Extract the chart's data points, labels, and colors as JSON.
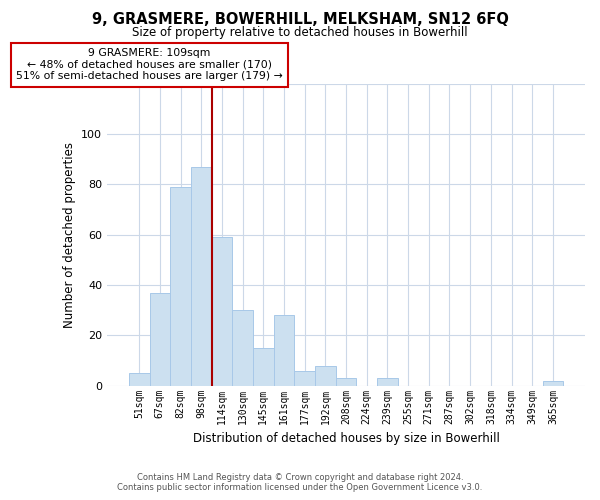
{
  "title": "9, GRASMERE, BOWERHILL, MELKSHAM, SN12 6FQ",
  "subtitle": "Size of property relative to detached houses in Bowerhill",
  "xlabel": "Distribution of detached houses by size in Bowerhill",
  "ylabel": "Number of detached properties",
  "bar_labels": [
    "51sqm",
    "67sqm",
    "82sqm",
    "98sqm",
    "114sqm",
    "130sqm",
    "145sqm",
    "161sqm",
    "177sqm",
    "192sqm",
    "208sqm",
    "224sqm",
    "239sqm",
    "255sqm",
    "271sqm",
    "287sqm",
    "302sqm",
    "318sqm",
    "334sqm",
    "349sqm",
    "365sqm"
  ],
  "bar_values": [
    5,
    37,
    79,
    87,
    59,
    30,
    15,
    28,
    6,
    8,
    3,
    0,
    3,
    0,
    0,
    0,
    0,
    0,
    0,
    0,
    2
  ],
  "bar_color": "#cce0f0",
  "bar_edge_color": "#a8c8e8",
  "vline_color": "#aa0000",
  "ylim": [
    0,
    120
  ],
  "yticks": [
    0,
    20,
    40,
    60,
    80,
    100,
    120
  ],
  "annotation_text": "9 GRASMERE: 109sqm\n← 48% of detached houses are smaller (170)\n51% of semi-detached houses are larger (179) →",
  "annotation_box_color": "#ffffff",
  "annotation_box_edge": "#cc0000",
  "footer_line1": "Contains HM Land Registry data © Crown copyright and database right 2024.",
  "footer_line2": "Contains public sector information licensed under the Open Government Licence v3.0.",
  "background_color": "#ffffff",
  "grid_color": "#ccd8e8"
}
